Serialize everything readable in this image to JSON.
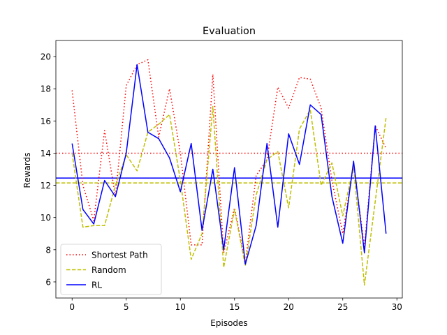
{
  "chart_data": {
    "type": "line",
    "title": "Evaluation",
    "xlabel": "Episodes",
    "ylabel": "Rewards",
    "xlim": [
      -1.5,
      30.5
    ],
    "ylim": [
      5.0,
      21.0
    ],
    "x_ticks": [
      0,
      5,
      10,
      15,
      20,
      25,
      30
    ],
    "y_ticks": [
      6,
      8,
      10,
      12,
      14,
      16,
      18,
      20
    ],
    "x": [
      0,
      1,
      2,
      3,
      4,
      5,
      6,
      7,
      8,
      9,
      10,
      11,
      12,
      13,
      14,
      15,
      16,
      17,
      18,
      19,
      20,
      21,
      22,
      23,
      24,
      25,
      26,
      27,
      28,
      29
    ],
    "legend_position": "lower-left",
    "grid": false,
    "series": [
      {
        "name": "Shortest Path",
        "color": "#ff0000",
        "style": "dotted",
        "values": [
          17.9,
          12.0,
          9.8,
          15.4,
          11.3,
          18.2,
          19.5,
          19.8,
          15.0,
          18.0,
          14.0,
          8.3,
          8.3,
          18.9,
          7.8,
          10.6,
          7.2,
          12.6,
          13.6,
          18.1,
          16.8,
          18.7,
          18.6,
          16.8,
          12.3,
          9.0,
          13.3,
          8.2,
          15.7,
          14.3
        ]
      },
      {
        "name": "Random",
        "color": "#bfbf00",
        "style": "dashed",
        "values": [
          14.0,
          9.4,
          9.5,
          9.5,
          12.0,
          13.9,
          12.9,
          15.3,
          15.8,
          16.4,
          12.3,
          7.4,
          9.0,
          16.9,
          6.9,
          10.5,
          7.0,
          11.4,
          13.6,
          14.1,
          10.6,
          15.5,
          16.7,
          12.0,
          13.4,
          10.1,
          13.2,
          5.8,
          11.0,
          16.2
        ]
      },
      {
        "name": "RL",
        "color": "#0000ff",
        "style": "solid",
        "values": [
          14.6,
          10.5,
          9.6,
          12.3,
          11.3,
          14.0,
          19.5,
          15.3,
          14.9,
          13.7,
          11.6,
          14.6,
          9.2,
          13.0,
          8.0,
          13.1,
          7.1,
          9.5,
          14.6,
          9.4,
          15.2,
          13.3,
          17.0,
          16.4,
          11.3,
          8.4,
          13.5,
          7.8,
          15.7,
          9.0
        ]
      }
    ],
    "hlines": [
      {
        "value": 14.0,
        "color": "#ff0000",
        "style": "dotted"
      },
      {
        "value": 12.15,
        "color": "#bfbf00",
        "style": "dashed"
      },
      {
        "value": 12.45,
        "color": "#0000ff",
        "style": "solid"
      }
    ]
  }
}
